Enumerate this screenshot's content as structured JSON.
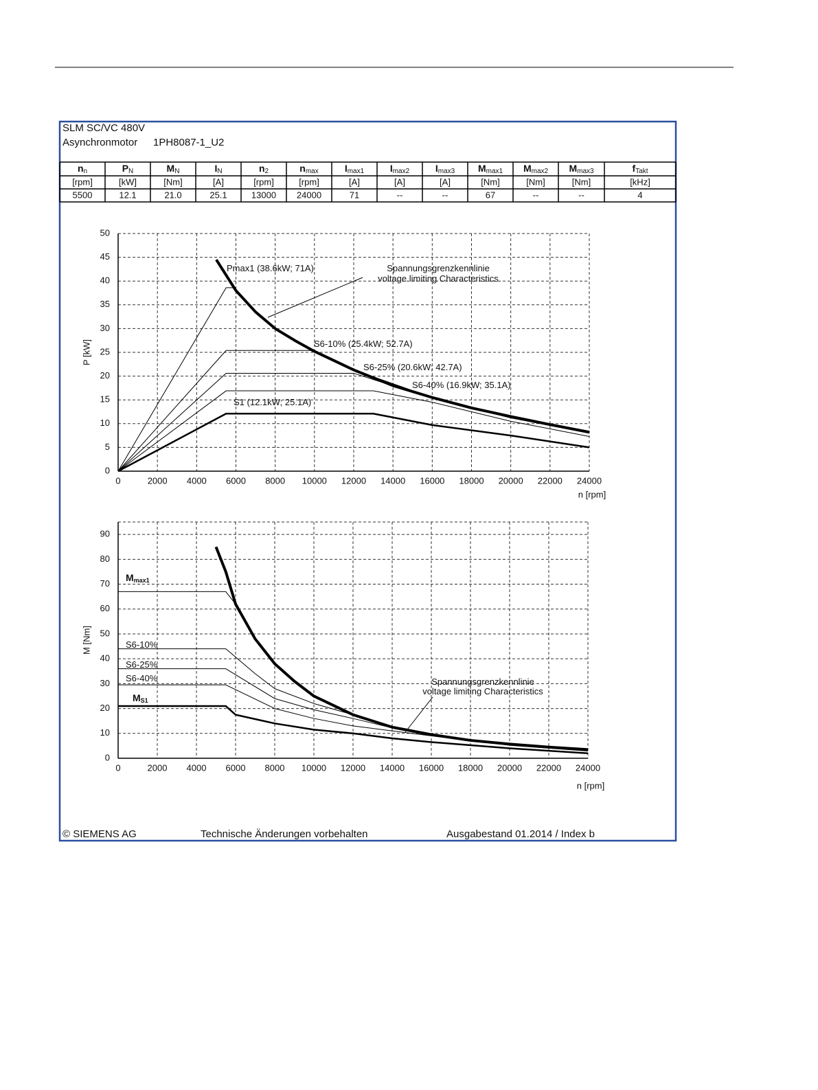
{
  "header": {
    "line1": "SLM SC/VC 480V",
    "line2": "Asynchronmotor",
    "model": "1PH8087-1_U2"
  },
  "table": {
    "headers": [
      {
        "main": "n",
        "sub": "n"
      },
      {
        "main": "P",
        "sub": "N"
      },
      {
        "main": "M",
        "sub": "N"
      },
      {
        "main": "I",
        "sub": "N"
      },
      {
        "main": "n",
        "sub": "2"
      },
      {
        "main": "n",
        "sub": "max"
      },
      {
        "main": "I",
        "sub": "max1"
      },
      {
        "main": "I",
        "sub": "max2"
      },
      {
        "main": "I",
        "sub": "max3"
      },
      {
        "main": "M",
        "sub": "max1"
      },
      {
        "main": "M",
        "sub": "max2"
      },
      {
        "main": "M",
        "sub": "max3"
      },
      {
        "main": "f",
        "sub": "Takt"
      }
    ],
    "units": [
      "[rpm]",
      "[kW]",
      "[Nm]",
      "[A]",
      "[rpm]",
      "[rpm]",
      "[A]",
      "[A]",
      "[A]",
      "[Nm]",
      "[Nm]",
      "[Nm]",
      "[kHz]"
    ],
    "values": [
      "5500",
      "12.1",
      "21.0",
      "25.1",
      "13000",
      "24000",
      "71",
      "--",
      "--",
      "67",
      "--",
      "--",
      "4"
    ]
  },
  "chart_data": [
    {
      "type": "line",
      "xlabel": "n [rpm]",
      "ylabel": "P [kW]",
      "xlim": [
        0,
        24000
      ],
      "ylim": [
        0,
        50
      ],
      "xticks": [
        0,
        2000,
        4000,
        6000,
        8000,
        10000,
        12000,
        14000,
        16000,
        18000,
        20000,
        22000,
        24000
      ],
      "yticks": [
        0,
        5,
        10,
        15,
        20,
        25,
        30,
        35,
        40,
        45,
        50
      ],
      "grid": true,
      "series": [
        {
          "color": "#000",
          "width": 1,
          "x": [
            0,
            5500,
            5900
          ],
          "y": [
            0,
            38.6,
            38.6
          ]
        },
        {
          "color": "#000",
          "width": 4,
          "x": [
            5000,
            6000,
            7000,
            8000,
            9000,
            10000,
            12000,
            14000,
            16000,
            18000,
            20000,
            22000,
            24000
          ],
          "y": [
            44.5,
            38,
            33.5,
            30,
            27.5,
            25.2,
            21.3,
            18,
            15.5,
            13.3,
            11.5,
            9.8,
            8.2
          ]
        },
        {
          "color": "#000",
          "width": 1,
          "x": [
            0,
            5500,
            10000,
            12000,
            16000,
            20000,
            24000
          ],
          "y": [
            0,
            25.4,
            25.4,
            21.3,
            15.5,
            11.5,
            8.2
          ]
        },
        {
          "color": "#000",
          "width": 1,
          "x": [
            0,
            5500,
            12000,
            16000,
            20000,
            24000
          ],
          "y": [
            0,
            20.6,
            20.6,
            15.3,
            11.2,
            8
          ]
        },
        {
          "color": "#000",
          "width": 1,
          "x": [
            0,
            5500,
            13000,
            16000,
            20000,
            24000
          ],
          "y": [
            0,
            16.9,
            16.9,
            14.5,
            10.5,
            7.3
          ]
        },
        {
          "color": "#000",
          "width": 2.5,
          "x": [
            0,
            5500,
            13000,
            16000,
            20000,
            24000
          ],
          "y": [
            0,
            12.1,
            12.1,
            9.7,
            7.5,
            5
          ]
        }
      ],
      "annotations": [
        {
          "text": "Pmax1 (38.6kW; 71A)"
        },
        {
          "text": "Spannungsgrenzkennlinie"
        },
        {
          "text": "voltage limiting  Characteristics"
        },
        {
          "text": "S6-10% (25.4kW; 52.7A)"
        },
        {
          "text": "S6-25% (20.6kW; 42.7A)"
        },
        {
          "text": "S6-40% (16.9kW; 35.1A)"
        },
        {
          "text": "S1 (12.1kW; 25.1A)"
        }
      ]
    },
    {
      "type": "line",
      "xlabel": "n [rpm]",
      "ylabel": "M [Nm]",
      "xlim": [
        0,
        24000
      ],
      "ylim": [
        0,
        95
      ],
      "xticks": [
        0,
        2000,
        4000,
        6000,
        8000,
        10000,
        12000,
        14000,
        16000,
        18000,
        20000,
        22000,
        24000
      ],
      "yticks": [
        0,
        10,
        20,
        30,
        40,
        50,
        60,
        70,
        80,
        90
      ],
      "grid": true,
      "series": [
        {
          "color": "#000",
          "width": 4,
          "x": [
            5000,
            5500,
            6000,
            7000,
            8000,
            9000,
            10000,
            12000,
            14000,
            16000,
            18000,
            20000,
            22000,
            24000
          ],
          "y": [
            85,
            75,
            62,
            48,
            38,
            31,
            25,
            17.5,
            12.5,
            9.5,
            7.2,
            5.7,
            4.5,
            3.5
          ]
        },
        {
          "color": "#000",
          "width": 1,
          "x": [
            0,
            5500,
            6000
          ],
          "y": [
            67,
            67,
            62
          ]
        },
        {
          "color": "#000",
          "width": 1,
          "x": [
            0,
            5500,
            7000,
            8000,
            10000,
            12000
          ],
          "y": [
            44,
            44,
            34,
            28,
            22,
            17.5
          ]
        },
        {
          "color": "#000",
          "width": 1,
          "x": [
            0,
            5500,
            8000,
            10000,
            12000,
            14000,
            16000,
            20000,
            24000
          ],
          "y": [
            36,
            36,
            24,
            19.5,
            16,
            12.2,
            9.5,
            5.5,
            3.2
          ]
        },
        {
          "color": "#000",
          "width": 1,
          "x": [
            0,
            5500,
            8000,
            10000,
            12000,
            14000,
            16000,
            20000,
            24000
          ],
          "y": [
            29.5,
            29.5,
            20,
            16,
            13,
            11,
            9,
            5.2,
            2.9
          ]
        },
        {
          "color": "#000",
          "width": 2.5,
          "x": [
            0,
            5500,
            6000,
            8000,
            10000,
            12000,
            14000,
            16000,
            20000,
            24000
          ],
          "y": [
            21,
            21,
            17.5,
            14,
            11.5,
            10,
            8,
            6.5,
            4,
            2
          ]
        }
      ],
      "annotations": [
        {
          "text": "M",
          "sub": "max1"
        },
        {
          "text": "S6-10%"
        },
        {
          "text": "S6-25%"
        },
        {
          "text": "S6-40%"
        },
        {
          "text": "M",
          "sub": "S1"
        },
        {
          "text": "Spannungsgrenzkennlinie"
        },
        {
          "text": "voltage limiting  Characteristics"
        }
      ]
    }
  ],
  "footer": {
    "copyright": "© SIEMENS AG",
    "notice": "Technische Änderungen vorbehalten",
    "edition": "Ausgabestand 01.2014 / Index b"
  }
}
